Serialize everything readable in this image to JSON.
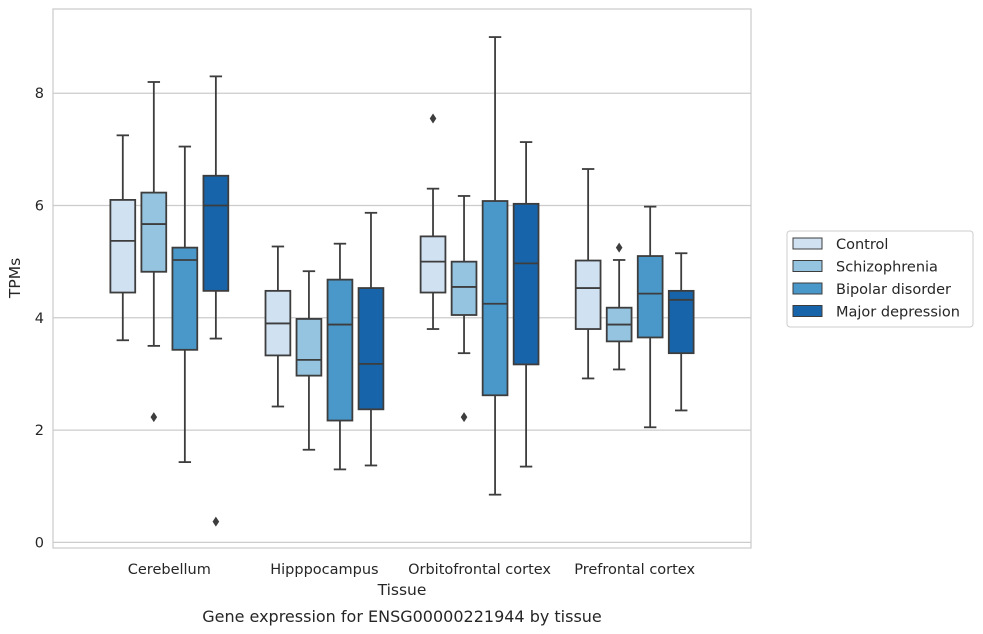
{
  "chart_data": {
    "type": "boxplot",
    "title": "",
    "caption": "Gene expression for ENSG00000221944 by tissue",
    "xlabel": "Tissue",
    "ylabel": "TPMs",
    "ylim": [
      -0.1,
      9.5
    ],
    "yticks": [
      0,
      2,
      4,
      6,
      8
    ],
    "grid": "horizontal",
    "legend_position": "right",
    "categories": [
      "Cerebellum",
      "Hipppocampus",
      "Orbitofrontal cortex",
      "Prefrontal cortex"
    ],
    "series": [
      {
        "name": "Control",
        "color": "#d0e1f2",
        "boxes": [
          {
            "whislo": 3.6,
            "q1": 4.45,
            "med": 5.37,
            "q3": 6.1,
            "whishi": 7.25,
            "fliers": []
          },
          {
            "whislo": 2.42,
            "q1": 3.33,
            "med": 3.9,
            "q3": 4.48,
            "whishi": 5.27,
            "fliers": []
          },
          {
            "whislo": 3.8,
            "q1": 4.45,
            "med": 5.0,
            "q3": 5.45,
            "whishi": 6.3,
            "fliers": [
              7.55
            ]
          },
          {
            "whislo": 2.92,
            "q1": 3.8,
            "med": 4.53,
            "q3": 5.02,
            "whishi": 6.65,
            "fliers": []
          }
        ]
      },
      {
        "name": "Schizophrenia",
        "color": "#94c4df",
        "boxes": [
          {
            "whislo": 3.5,
            "q1": 4.82,
            "med": 5.67,
            "q3": 6.23,
            "whishi": 8.2,
            "fliers": [
              2.23
            ]
          },
          {
            "whislo": 1.65,
            "q1": 2.97,
            "med": 3.25,
            "q3": 3.98,
            "whishi": 4.83,
            "fliers": []
          },
          {
            "whislo": 3.37,
            "q1": 4.05,
            "med": 4.55,
            "q3": 5.0,
            "whishi": 6.17,
            "fliers": [
              2.23
            ]
          },
          {
            "whislo": 3.08,
            "q1": 3.58,
            "med": 3.88,
            "q3": 4.18,
            "whishi": 5.03,
            "fliers": [
              5.25
            ]
          }
        ]
      },
      {
        "name": "Bipolar disorder",
        "color": "#4a98c9",
        "boxes": [
          {
            "whislo": 1.43,
            "q1": 3.43,
            "med": 5.03,
            "q3": 5.25,
            "whishi": 7.05,
            "fliers": []
          },
          {
            "whislo": 1.3,
            "q1": 2.17,
            "med": 3.88,
            "q3": 4.68,
            "whishi": 5.32,
            "fliers": []
          },
          {
            "whislo": 0.85,
            "q1": 2.62,
            "med": 4.25,
            "q3": 6.08,
            "whishi": 9.0,
            "fliers": []
          },
          {
            "whislo": 2.05,
            "q1": 3.65,
            "med": 4.43,
            "q3": 5.1,
            "whishi": 5.98,
            "fliers": []
          }
        ]
      },
      {
        "name": "Major depression",
        "color": "#1764ab",
        "boxes": [
          {
            "whislo": 3.63,
            "q1": 4.48,
            "med": 6.0,
            "q3": 6.53,
            "whishi": 8.3,
            "fliers": [
              0.37
            ]
          },
          {
            "whislo": 1.37,
            "q1": 2.37,
            "med": 3.18,
            "q3": 4.53,
            "whishi": 5.87,
            "fliers": []
          },
          {
            "whislo": 1.35,
            "q1": 3.17,
            "med": 4.97,
            "q3": 6.03,
            "whishi": 7.13,
            "fliers": []
          },
          {
            "whislo": 2.35,
            "q1": 3.37,
            "med": 4.32,
            "q3": 4.48,
            "whishi": 5.15,
            "fliers": []
          }
        ]
      }
    ]
  }
}
